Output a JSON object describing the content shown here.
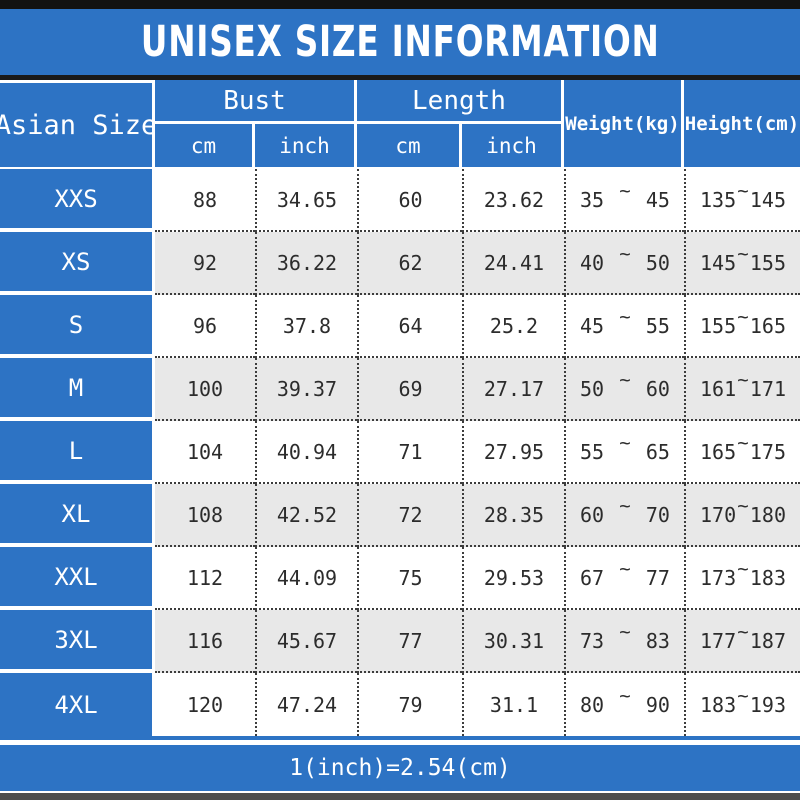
{
  "title": "UNISEX SIZE INFORMATION",
  "footer_note": "1(inch)=2.54(cm)",
  "ui": {
    "tilde": "~"
  },
  "colors": {
    "accent_blue": "#2d73c4",
    "alt_row_gray": "#e8e8e8",
    "bar_dark": "#121212",
    "text_dark": "#2c2c2c"
  },
  "columns": {
    "asian_size": "Asian Size",
    "bust": {
      "label": "Bust",
      "sub_cm": "cm",
      "sub_inch": "inch"
    },
    "length": {
      "label": "Length",
      "sub_cm": "cm",
      "sub_inch": "inch"
    },
    "weight": "Weight(kg)",
    "height": "Height(cm)"
  },
  "rows": [
    {
      "size": "XXS",
      "bust_cm": "88",
      "bust_inch": "34.65",
      "length_cm": "60",
      "length_inch": "23.62",
      "weight_min": "35",
      "weight_max": "45",
      "height_min": "135",
      "height_max": "145"
    },
    {
      "size": "XS",
      "bust_cm": "92",
      "bust_inch": "36.22",
      "length_cm": "62",
      "length_inch": "24.41",
      "weight_min": "40",
      "weight_max": "50",
      "height_min": "145",
      "height_max": "155"
    },
    {
      "size": "S",
      "bust_cm": "96",
      "bust_inch": "37.8",
      "length_cm": "64",
      "length_inch": "25.2",
      "weight_min": "45",
      "weight_max": "55",
      "height_min": "155",
      "height_max": "165"
    },
    {
      "size": "M",
      "bust_cm": "100",
      "bust_inch": "39.37",
      "length_cm": "69",
      "length_inch": "27.17",
      "weight_min": "50",
      "weight_max": "60",
      "height_min": "161",
      "height_max": "171"
    },
    {
      "size": "L",
      "bust_cm": "104",
      "bust_inch": "40.94",
      "length_cm": "71",
      "length_inch": "27.95",
      "weight_min": "55",
      "weight_max": "65",
      "height_min": "165",
      "height_max": "175"
    },
    {
      "size": "XL",
      "bust_cm": "108",
      "bust_inch": "42.52",
      "length_cm": "72",
      "length_inch": "28.35",
      "weight_min": "60",
      "weight_max": "70",
      "height_min": "170",
      "height_max": "180"
    },
    {
      "size": "XXL",
      "bust_cm": "112",
      "bust_inch": "44.09",
      "length_cm": "75",
      "length_inch": "29.53",
      "weight_min": "67",
      "weight_max": "77",
      "height_min": "173",
      "height_max": "183"
    },
    {
      "size": "3XL",
      "bust_cm": "116",
      "bust_inch": "45.67",
      "length_cm": "77",
      "length_inch": "30.31",
      "weight_min": "73",
      "weight_max": "83",
      "height_min": "177",
      "height_max": "187"
    },
    {
      "size": "4XL",
      "bust_cm": "120",
      "bust_inch": "47.24",
      "length_cm": "79",
      "length_inch": "31.1",
      "weight_min": "80",
      "weight_max": "90",
      "height_min": "183",
      "height_max": "193"
    }
  ],
  "chart_data": {
    "type": "table",
    "title": "UNISEX SIZE INFORMATION",
    "note": "1(inch)=2.54(cm)",
    "columns": [
      "Asian Size",
      "Bust cm",
      "Bust inch",
      "Length cm",
      "Length inch",
      "Weight(kg)",
      "Height(cm)"
    ],
    "rows": [
      [
        "XXS",
        "88",
        "34.65",
        "60",
        "23.62",
        "35~45",
        "135~145"
      ],
      [
        "XS",
        "92",
        "36.22",
        "62",
        "24.41",
        "40~50",
        "145~155"
      ],
      [
        "S",
        "96",
        "37.8",
        "64",
        "25.2",
        "45~55",
        "155~165"
      ],
      [
        "M",
        "100",
        "39.37",
        "69",
        "27.17",
        "50~60",
        "161~171"
      ],
      [
        "L",
        "104",
        "40.94",
        "71",
        "27.95",
        "55~65",
        "165~175"
      ],
      [
        "XL",
        "108",
        "42.52",
        "72",
        "28.35",
        "60~70",
        "170~180"
      ],
      [
        "XXL",
        "112",
        "44.09",
        "75",
        "29.53",
        "67~77",
        "173~183"
      ],
      [
        "3XL",
        "116",
        "45.67",
        "77",
        "30.31",
        "73~83",
        "177~187"
      ],
      [
        "4XL",
        "120",
        "47.24",
        "79",
        "31.1",
        "80~90",
        "183~193"
      ]
    ]
  }
}
